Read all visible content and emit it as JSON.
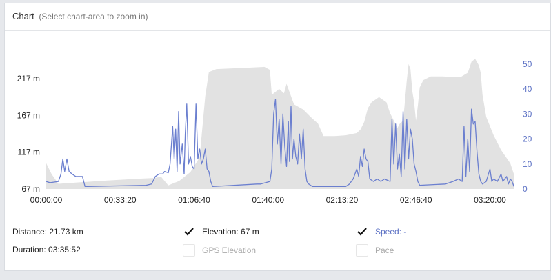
{
  "header": {
    "title": "Chart",
    "subtitle": "(Select chart-area to zoom in)"
  },
  "colors": {
    "elevation_fill": "#e2e2e2",
    "speed_line": "#6b7fcf",
    "speed_axis": "#5b70c4"
  },
  "stats": {
    "distance": "Distance: 21.73 km",
    "duration": "Duration: 03:35:52"
  },
  "legend": [
    {
      "label": "Elevation: 67 m",
      "checked": true,
      "icon": "check-icon"
    },
    {
      "label": "GPS Elevation",
      "checked": false,
      "icon": ""
    },
    {
      "label": "Speed: -",
      "checked": true,
      "icon": "check-icon"
    },
    {
      "label": "Pace",
      "checked": false,
      "icon": ""
    }
  ],
  "chart_data": {
    "type": "area",
    "x_unit": "seconds",
    "xlim": [
      0,
      12700
    ],
    "x_ticks": [
      0,
      2000,
      4000,
      6000,
      8000,
      10000,
      12000
    ],
    "x_tick_labels": [
      "00:00:00",
      "00:33:20",
      "01:06:40",
      "01:40:00",
      "02:13:20",
      "02:46:40",
      "03:20:00"
    ],
    "left_axis": {
      "ylim": [
        67,
        247
      ],
      "ticks": [
        67,
        117,
        167,
        217
      ],
      "tick_labels": [
        "67 m",
        "117 m",
        "167 m",
        "217 m"
      ]
    },
    "right_axis": {
      "ylim": [
        0,
        53
      ],
      "ticks": [
        0,
        10,
        20,
        30,
        40,
        50
      ],
      "tick_labels": [
        "0",
        "10",
        "20",
        "30",
        "40",
        "50"
      ]
    },
    "series": [
      {
        "axis": "left",
        "style": "area",
        "points": [
          [
            0,
            102
          ],
          [
            150,
            87
          ],
          [
            330,
            74
          ],
          [
            900,
            76
          ],
          [
            1500,
            78
          ],
          [
            2500,
            81
          ],
          [
            2950,
            82
          ],
          [
            3100,
            84
          ],
          [
            3300,
            72
          ],
          [
            3600,
            78
          ],
          [
            3900,
            90
          ],
          [
            4150,
            110
          ],
          [
            4300,
            193
          ],
          [
            4400,
            226
          ],
          [
            4600,
            230
          ],
          [
            5500,
            232
          ],
          [
            5900,
            233
          ],
          [
            6050,
            229
          ],
          [
            6100,
            195
          ],
          [
            6300,
            203
          ],
          [
            6430,
            197
          ],
          [
            6500,
            210
          ],
          [
            6550,
            203
          ],
          [
            6700,
            182
          ],
          [
            6950,
            175
          ],
          [
            7150,
            165
          ],
          [
            7350,
            156
          ],
          [
            7500,
            139
          ],
          [
            7800,
            139
          ],
          [
            8100,
            140
          ],
          [
            8400,
            143
          ],
          [
            8500,
            148
          ],
          [
            8600,
            158
          ],
          [
            8700,
            177
          ],
          [
            8800,
            185
          ],
          [
            9000,
            192
          ],
          [
            9200,
            185
          ],
          [
            9300,
            170
          ],
          [
            9400,
            160
          ],
          [
            9500,
            150
          ],
          [
            9550,
            155
          ],
          [
            9650,
            160
          ],
          [
            9700,
            185
          ],
          [
            9750,
            214
          ],
          [
            9800,
            237
          ],
          [
            9850,
            230
          ],
          [
            9900,
            200
          ],
          [
            9950,
            185
          ],
          [
            10000,
            160
          ],
          [
            10050,
            180
          ],
          [
            10100,
            205
          ],
          [
            10200,
            215
          ],
          [
            10400,
            220
          ],
          [
            10700,
            220
          ],
          [
            11200,
            219
          ],
          [
            11400,
            225
          ],
          [
            11500,
            240
          ],
          [
            11600,
            244
          ],
          [
            11700,
            235
          ],
          [
            11750,
            225
          ],
          [
            11800,
            195
          ],
          [
            11900,
            165
          ],
          [
            12100,
            140
          ],
          [
            12300,
            120
          ],
          [
            12550,
            102
          ],
          [
            12650,
            87
          ]
        ]
      },
      {
        "axis": "right",
        "style": "line",
        "points": [
          [
            0,
            3
          ],
          [
            100,
            2.5
          ],
          [
            330,
            3
          ],
          [
            400,
            6
          ],
          [
            450,
            12
          ],
          [
            500,
            7
          ],
          [
            560,
            12
          ],
          [
            620,
            7
          ],
          [
            700,
            6
          ],
          [
            800,
            5
          ],
          [
            980,
            5
          ],
          [
            1050,
            1
          ],
          [
            2700,
            1.5
          ],
          [
            2850,
            2
          ],
          [
            2950,
            5
          ],
          [
            3050,
            6
          ],
          [
            3150,
            6
          ],
          [
            3200,
            7
          ],
          [
            3300,
            6.5
          ],
          [
            3350,
            10
          ],
          [
            3420,
            25
          ],
          [
            3460,
            12
          ],
          [
            3500,
            24
          ],
          [
            3540,
            7
          ],
          [
            3580,
            31
          ],
          [
            3620,
            10
          ],
          [
            3680,
            18
          ],
          [
            3730,
            6
          ],
          [
            3760,
            22
          ],
          [
            3800,
            34
          ],
          [
            3850,
            10
          ],
          [
            3900,
            13
          ],
          [
            3950,
            9
          ],
          [
            4000,
            8
          ],
          [
            4050,
            34
          ],
          [
            4100,
            12
          ],
          [
            4150,
            16
          ],
          [
            4200,
            10
          ],
          [
            4250,
            12
          ],
          [
            4300,
            16
          ],
          [
            4350,
            8
          ],
          [
            4400,
            7
          ],
          [
            4450,
            3
          ],
          [
            4500,
            1
          ],
          [
            5700,
            2
          ],
          [
            5800,
            2
          ],
          [
            6050,
            3
          ],
          [
            6100,
            8
          ],
          [
            6150,
            30
          ],
          [
            6200,
            36
          ],
          [
            6250,
            18
          ],
          [
            6300,
            28
          ],
          [
            6350,
            10
          ],
          [
            6400,
            30
          ],
          [
            6450,
            17
          ],
          [
            6500,
            9
          ],
          [
            6550,
            27
          ],
          [
            6580,
            11
          ],
          [
            6620,
            33
          ],
          [
            6660,
            12
          ],
          [
            6700,
            20
          ],
          [
            6750,
            13
          ],
          [
            6800,
            10
          ],
          [
            6850,
            22
          ],
          [
            6900,
            12
          ],
          [
            6950,
            24
          ],
          [
            7000,
            8
          ],
          [
            7050,
            3
          ],
          [
            7100,
            2
          ],
          [
            7200,
            1
          ],
          [
            7500,
            1
          ],
          [
            8100,
            1
          ],
          [
            8200,
            2
          ],
          [
            8300,
            4
          ],
          [
            8400,
            8
          ],
          [
            8450,
            5
          ],
          [
            8500,
            13
          ],
          [
            8550,
            9
          ],
          [
            8600,
            16
          ],
          [
            8650,
            12
          ],
          [
            8700,
            11
          ],
          [
            8750,
            4
          ],
          [
            8850,
            3
          ],
          [
            8950,
            4
          ],
          [
            9050,
            3
          ],
          [
            9150,
            4
          ],
          [
            9300,
            3
          ],
          [
            9350,
            28
          ],
          [
            9400,
            10
          ],
          [
            9450,
            26
          ],
          [
            9500,
            8
          ],
          [
            9550,
            14
          ],
          [
            9600,
            5
          ],
          [
            9650,
            31
          ],
          [
            9700,
            8
          ],
          [
            9750,
            28
          ],
          [
            9800,
            12
          ],
          [
            9850,
            24
          ],
          [
            9900,
            20
          ],
          [
            9950,
            10
          ],
          [
            10000,
            7
          ],
          [
            10050,
            3
          ],
          [
            10100,
            1.5
          ],
          [
            10800,
            2
          ],
          [
            11000,
            3
          ],
          [
            11150,
            4
          ],
          [
            11250,
            3
          ],
          [
            11300,
            25
          ],
          [
            11350,
            5
          ],
          [
            11400,
            20
          ],
          [
            11450,
            7
          ],
          [
            11500,
            32
          ],
          [
            11550,
            26
          ],
          [
            11600,
            27
          ],
          [
            11650,
            15
          ],
          [
            11700,
            6
          ],
          [
            11750,
            3
          ],
          [
            11800,
            2
          ],
          [
            11900,
            3
          ],
          [
            12000,
            8
          ],
          [
            12050,
            3
          ],
          [
            12100,
            4
          ],
          [
            12200,
            3
          ],
          [
            12300,
            6
          ],
          [
            12350,
            3
          ],
          [
            12450,
            5
          ],
          [
            12500,
            2
          ],
          [
            12550,
            4
          ],
          [
            12600,
            3
          ],
          [
            12650,
            1
          ]
        ]
      }
    ]
  }
}
